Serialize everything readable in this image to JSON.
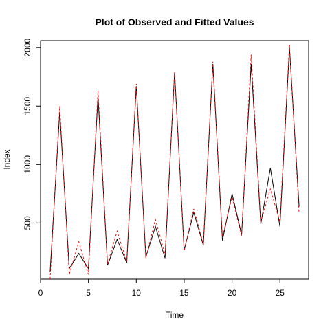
{
  "chart_data": {
    "type": "line",
    "title": "Plot of Observed and Fitted Values",
    "xlabel": "Time",
    "ylabel": "Index",
    "xlim": [
      0,
      28
    ],
    "ylim": [
      20,
      2060
    ],
    "x_ticks": [
      0,
      5,
      10,
      15,
      20,
      25
    ],
    "y_ticks": [
      500,
      1000,
      1500,
      2000
    ],
    "grid": false,
    "legend": "none",
    "x": [
      1,
      2,
      3,
      4,
      5,
      6,
      7,
      8,
      9,
      10,
      11,
      12,
      13,
      14,
      15,
      16,
      17,
      18,
      19,
      20,
      21,
      22,
      23,
      24,
      25,
      26,
      27
    ],
    "series": [
      {
        "color": "#000000",
        "dash": "solid",
        "values": [
          80,
          1450,
          110,
          240,
          110,
          1580,
          140,
          360,
          160,
          1670,
          210,
          470,
          200,
          1790,
          270,
          590,
          310,
          1860,
          350,
          750,
          400,
          1860,
          490,
          970,
          470,
          2000,
          640
        ]
      },
      {
        "color": "#ff0000",
        "dash": "dashed",
        "values": [
          20,
          1500,
          60,
          340,
          60,
          1630,
          150,
          430,
          170,
          1690,
          200,
          530,
          230,
          1790,
          260,
          620,
          320,
          1880,
          380,
          720,
          390,
          1940,
          510,
          790,
          510,
          2030,
          580
        ]
      }
    ]
  }
}
